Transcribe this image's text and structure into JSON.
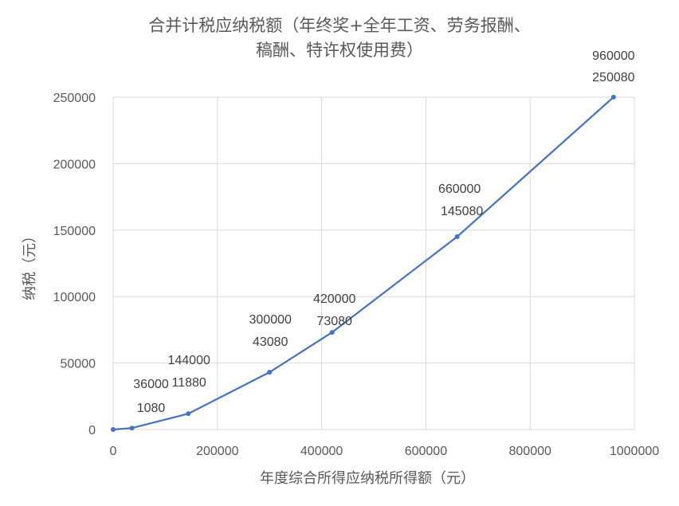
{
  "chart_data": {
    "type": "scatter",
    "title_lines": [
      "合并计税应纳税额（年终奖+全年工资、劳务报酬、",
      "稿酬、特许权使用费）"
    ],
    "xlabel": "年度综合所得应纳税所得额（元）",
    "ylabel": "纳税（元）",
    "xlim": [
      0,
      1000000
    ],
    "ylim": [
      0,
      250000
    ],
    "x_ticks": [
      "0",
      "200000",
      "400000",
      "600000",
      "800000",
      "1000000"
    ],
    "y_ticks": [
      "0",
      "50000",
      "100000",
      "150000",
      "200000",
      "250000"
    ],
    "grid": true,
    "legend": "none",
    "series": [
      {
        "x": [
          0,
          36000,
          144000,
          300000,
          420000,
          660000,
          960000
        ],
        "y": [
          0,
          1080,
          11880,
          43080,
          73080,
          145080,
          250080
        ]
      }
    ],
    "data_labels": [
      {
        "x_text": "36000",
        "y_text": "1080"
      },
      {
        "x_text": "144000",
        "y_text": "11880"
      },
      {
        "x_text": "300000",
        "y_text": "43080"
      },
      {
        "x_text": "420000",
        "y_text": "73080"
      },
      {
        "x_text": "660000",
        "y_text": "145080"
      },
      {
        "x_text": "960000",
        "y_text": "250080"
      }
    ],
    "color": "#4472c4"
  }
}
